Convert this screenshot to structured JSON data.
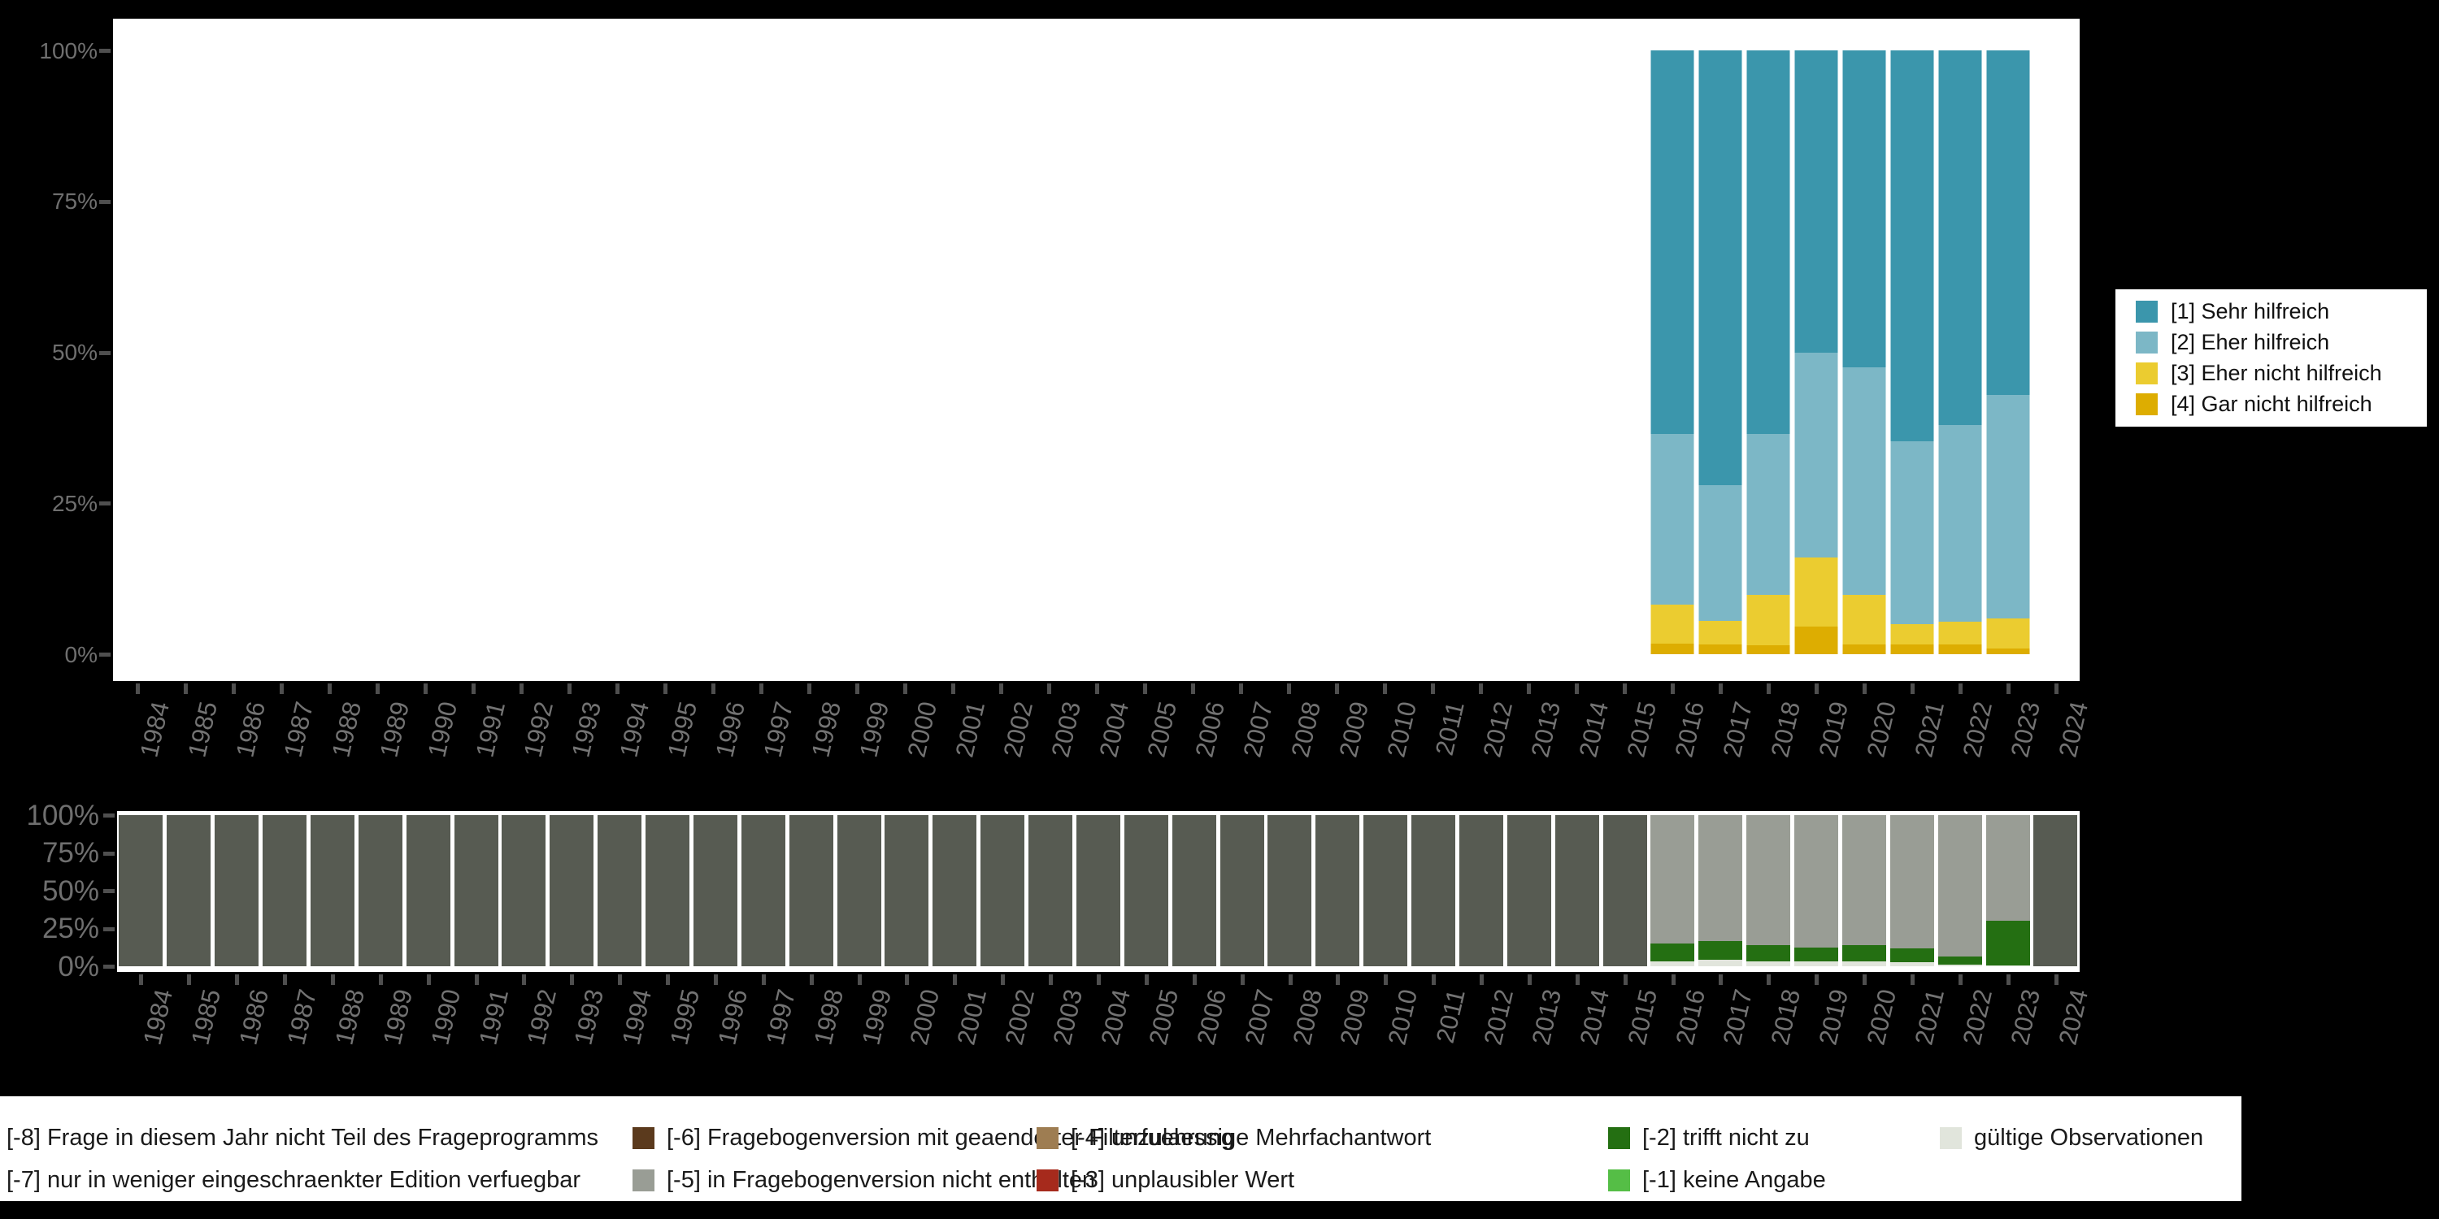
{
  "figure": {
    "background": "#000000",
    "panel_background": "#FFFFFF",
    "axis_text_color": "#6f6f6f",
    "tick_color": "#4f4f4f"
  },
  "answer_legend": {
    "items": [
      {
        "label": "[1] Sehr hilfreich",
        "color": "#3B96AC"
      },
      {
        "label": "[2] Eher hilfreich",
        "color": "#7CB7C6"
      },
      {
        "label": "[3] Eher nicht hilfreich",
        "color": "#EBCC30"
      },
      {
        "label": "[4] Gar nicht hilfreich",
        "color": "#DDAD01"
      }
    ]
  },
  "missing_legend": {
    "rows": [
      [
        {
          "label": "[-8] Frage in diesem Jahr nicht Teil des Frageprogramms",
          "color": null
        },
        {
          "label": "[-6] Fragebogenversion mit geaenderter Filterfuehrung",
          "color": "#5B3A1D"
        },
        {
          "label": "[-4] unzulaessige Mehrfachantwort",
          "color": "#9E7D52"
        },
        {
          "label": "[-2] trifft nicht zu",
          "color": "#246F12"
        },
        {
          "label": "gültige Observationen",
          "color": "#E1E5DC"
        }
      ],
      [
        {
          "label": "[-7] nur in weniger eingeschraenkter Edition verfuegbar",
          "color": null
        },
        {
          "label": "[-5] in Fragebogenversion nicht enthalten",
          "color": "#999D95"
        },
        {
          "label": "[-3] unplausibler Wert",
          "color": "#A62A1C"
        },
        {
          "label": "[-1] keine Angabe",
          "color": "#55BE46"
        }
      ]
    ]
  },
  "chart_data": [
    {
      "id": "answers",
      "type": "bar",
      "stacked": true,
      "percent": true,
      "ylim": [
        0,
        100
      ],
      "yticks": [
        0,
        25,
        50,
        75,
        100
      ],
      "ytick_labels": [
        "0%",
        "25%",
        "50%",
        "75%",
        "100%"
      ],
      "categories": [
        "1984",
        "1985",
        "1986",
        "1987",
        "1988",
        "1989",
        "1990",
        "1991",
        "1992",
        "1993",
        "1994",
        "1995",
        "1996",
        "1997",
        "1998",
        "1999",
        "2000",
        "2001",
        "2002",
        "2003",
        "2004",
        "2005",
        "2006",
        "2007",
        "2008",
        "2009",
        "2010",
        "2011",
        "2012",
        "2013",
        "2014",
        "2015",
        "2016",
        "2017",
        "2018",
        "2019",
        "2020",
        "2021",
        "2022",
        "2023",
        "2024"
      ],
      "series": [
        {
          "name": "[1] Sehr hilfreich",
          "color": "#3B96AC",
          "values": {
            "2016": 63.5,
            "2017": 72.0,
            "2018": 63.5,
            "2019": 50.0,
            "2020": 52.5,
            "2021": 64.8,
            "2022": 62.0,
            "2023": 57.0
          }
        },
        {
          "name": "[2] Eher hilfreich",
          "color": "#7CB7C6",
          "values": {
            "2016": 28.3,
            "2017": 22.5,
            "2018": 26.7,
            "2019": 34.0,
            "2020": 37.7,
            "2021": 30.2,
            "2022": 32.6,
            "2023": 37.1
          }
        },
        {
          "name": "[3] Eher nicht hilfreich",
          "color": "#EBCC30",
          "values": {
            "2016": 6.4,
            "2017": 3.9,
            "2018": 8.3,
            "2019": 11.4,
            "2020": 8.2,
            "2021": 3.4,
            "2022": 3.8,
            "2023": 5.0
          }
        },
        {
          "name": "[4] Gar nicht hilfreich",
          "color": "#DDAD01",
          "values": {
            "2016": 1.8,
            "2017": 1.6,
            "2018": 1.5,
            "2019": 4.6,
            "2020": 1.6,
            "2021": 1.6,
            "2022": 1.6,
            "2023": 0.9
          }
        }
      ]
    },
    {
      "id": "missings",
      "type": "bar",
      "stacked": true,
      "percent": true,
      "ylim": [
        0,
        100
      ],
      "yticks": [
        0,
        25,
        50,
        75,
        100
      ],
      "ytick_labels": [
        "0%",
        "25%",
        "50%",
        "75%",
        "100%"
      ],
      "categories": [
        "1984",
        "1985",
        "1986",
        "1987",
        "1988",
        "1989",
        "1990",
        "1991",
        "1992",
        "1993",
        "1994",
        "1995",
        "1996",
        "1997",
        "1998",
        "1999",
        "2000",
        "2001",
        "2002",
        "2003",
        "2004",
        "2005",
        "2006",
        "2007",
        "2008",
        "2009",
        "2010",
        "2011",
        "2012",
        "2013",
        "2014",
        "2015",
        "2016",
        "2017",
        "2018",
        "2019",
        "2020",
        "2021",
        "2022",
        "2023",
        "2024"
      ],
      "series": [
        {
          "name": "[-8] Frage in diesem Jahr nicht Teil des Frageprogramms",
          "color": "#575B52",
          "values": {
            "1984": 100,
            "1985": 100,
            "1986": 100,
            "1987": 100,
            "1988": 100,
            "1989": 100,
            "1990": 100,
            "1991": 100,
            "1992": 100,
            "1993": 100,
            "1994": 100,
            "1995": 100,
            "1996": 100,
            "1997": 100,
            "1998": 100,
            "1999": 100,
            "2000": 100,
            "2001": 100,
            "2002": 100,
            "2003": 100,
            "2004": 100,
            "2005": 100,
            "2006": 100,
            "2007": 100,
            "2008": 100,
            "2009": 100,
            "2010": 100,
            "2011": 100,
            "2012": 100,
            "2013": 100,
            "2014": 100,
            "2015": 100,
            "2024": 100
          }
        },
        {
          "name": "[-5] in Fragebogenversion nicht enthalten",
          "color": "#999D95",
          "values": {
            "2016": 85.0,
            "2017": 83.5,
            "2018": 86.0,
            "2019": 87.5,
            "2020": 86.0,
            "2021": 88.3,
            "2022": 93.5,
            "2023": 69.8
          }
        },
        {
          "name": "[-2] trifft nicht zu",
          "color": "#246F12",
          "values": {
            "2016": 11.8,
            "2017": 12.2,
            "2018": 10.8,
            "2019": 9.3,
            "2020": 10.8,
            "2021": 9.0,
            "2022": 5.4,
            "2023": 29.5
          }
        },
        {
          "name": "gültige Observationen",
          "color": "#E1E5DC",
          "values": {
            "2016": 3.2,
            "2017": 4.3,
            "2018": 3.2,
            "2019": 3.2,
            "2020": 3.2,
            "2021": 2.7,
            "2022": 1.1,
            "2023": 0.7
          }
        }
      ]
    }
  ]
}
